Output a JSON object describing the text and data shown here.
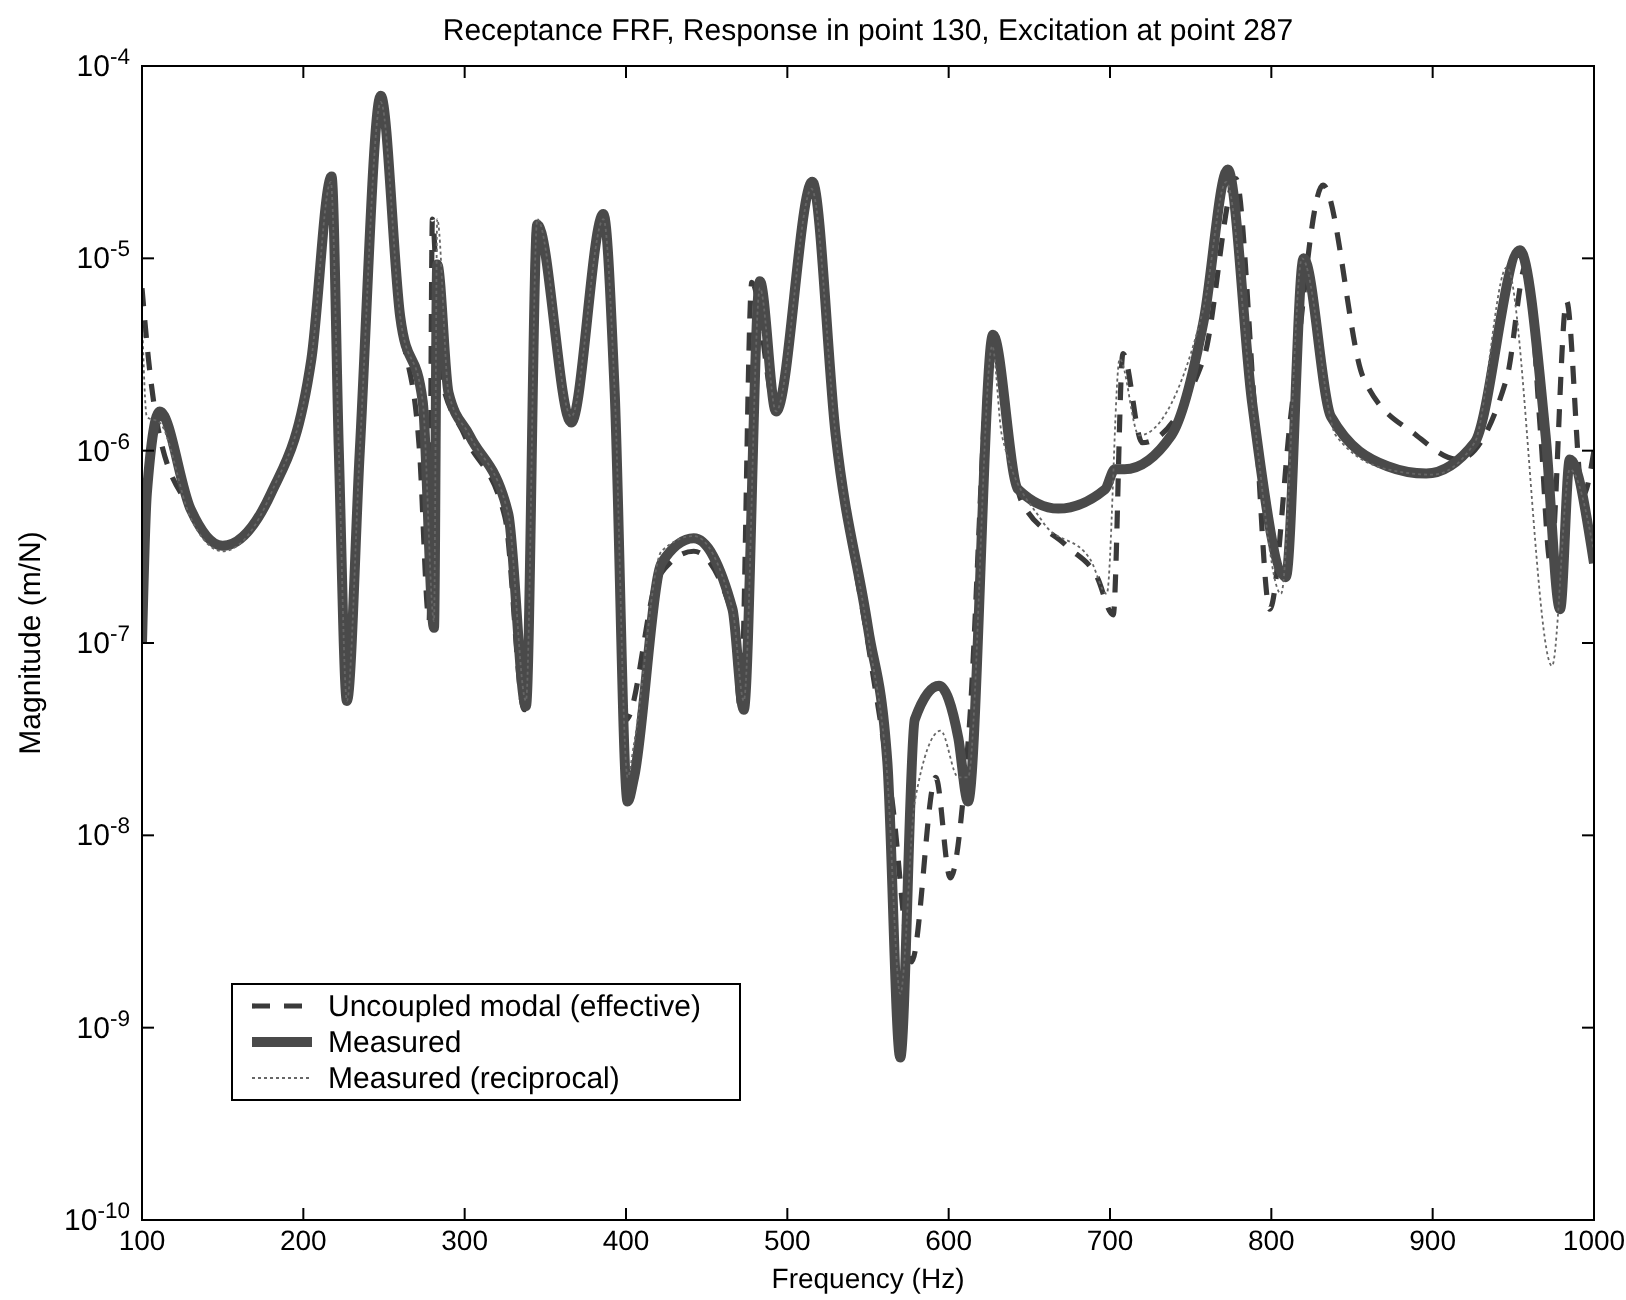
{
  "chart_data": {
    "type": "line",
    "title": "Receptance FRF, Response in point 130, Excitation at point 287",
    "xlabel": "Frequency (Hz)",
    "ylabel": "Magnitude (m/N)",
    "log": "y",
    "grid": false,
    "legend": "bottom left",
    "marker": "none",
    "xlim": [
      100,
      1000
    ],
    "xticks": [
      100,
      200,
      300,
      400,
      500,
      600,
      700,
      800,
      900,
      1000
    ],
    "ylim": [
      1e-10,
      0.0001
    ],
    "yticks": [
      {
        "value": 1e-10,
        "label": "10$^{-10}$"
      },
      {
        "value": 1e-09,
        "label": "10$^{-9}$"
      },
      {
        "value": 1e-08,
        "label": "10$^{-8}$"
      },
      {
        "value": 1e-07,
        "label": "10$^{-7}$"
      },
      {
        "value": 1e-06,
        "label": "10$^{-6}$"
      },
      {
        "value": 1e-05,
        "label": "10$^{-5}$"
      },
      {
        "value": 0.0001,
        "label": "10$^{-4}$"
      }
    ],
    "series": [
      {
        "name": "Uncoupled modal (effective)",
        "color": "#3a3a3a",
        "line_style": "dashed",
        "x": [
          100,
          104,
          110,
          130,
          150,
          180,
          205,
          217,
          222,
          227,
          235,
          248,
          260,
          272,
          278,
          280,
          285,
          300,
          325,
          337,
          344,
          366,
          386,
          392,
          400,
          420,
          442,
          466,
          471,
          478,
          493,
          515,
          530,
          550,
          565,
          577,
          592,
          601,
          612,
          627,
          645,
          673,
          692,
          702,
          708,
          720,
          758,
          778,
          790,
          799,
          812,
          832,
          857,
          890,
          916,
          946,
          958,
          967,
          973,
          983,
          993,
          1000
        ],
        "values": [
          7e-06,
          3e-06,
          1.3e-06,
          5e-07,
          3.2e-07,
          6e-07,
          3e-06,
          2.6e-05,
          1e-06,
          5e-08,
          1e-06,
          7e-05,
          5e-06,
          1e-06,
          1.3e-07,
          1.6e-05,
          2.5e-06,
          1.2e-06,
          4.5e-07,
          4.5e-08,
          1.6e-05,
          1.5e-06,
          1.7e-05,
          2e-06,
          4e-08,
          2.2e-07,
          3e-07,
          1.4e-07,
          4.5e-08,
          7.5e-06,
          1.6e-06,
          2.5e-05,
          1.2e-06,
          1e-07,
          1.5e-08,
          2.2e-09,
          2e-08,
          6e-09,
          3e-08,
          4e-06,
          5.5e-07,
          3.2e-07,
          2.2e-07,
          1.4e-07,
          3.2e-06,
          1.1e-06,
          3e-06,
          2.6e-05,
          1.5e-06,
          1.5e-07,
          1.5e-06,
          2.4e-05,
          2.4e-06,
          1.2e-06,
          9e-07,
          2.4e-06,
          9.3e-06,
          1.2e-06,
          2.6e-07,
          6e-06,
          5.8e-07,
          1e-06
        ]
      },
      {
        "name": "Measured",
        "color": "#4a4a4a",
        "line_style": "solid",
        "x": [
          100,
          103,
          111,
          130,
          150,
          180,
          205,
          217.5,
          222,
          227,
          235,
          248,
          260,
          274,
          281,
          283,
          290,
          303,
          327,
          338,
          345,
          366,
          386,
          393,
          401,
          405,
          422,
          442,
          466,
          473,
          483,
          493,
          515.5,
          530,
          550,
          562,
          570,
          579,
          594,
          606,
          612,
          627.5,
          643,
          668,
          697,
          703,
          709,
          738,
          758,
          773,
          788,
          809,
          820,
          837,
          872,
          896,
          926,
          954,
          970,
          979,
          985,
          1000
        ],
        "values": [
          1e-07,
          6e-07,
          1.6e-06,
          5e-07,
          3.2e-07,
          6e-07,
          3e-06,
          2.66e-05,
          1e-06,
          5e-08,
          1e-06,
          7e-05,
          5e-06,
          1.8e-06,
          1.2e-07,
          9.3e-06,
          2e-06,
          1.2e-06,
          4.7e-07,
          4.7e-08,
          1.5e-05,
          1.4e-06,
          1.7e-05,
          2e-06,
          1.5e-08,
          2e-08,
          2.6e-07,
          3.5e-07,
          1.5e-07,
          4.5e-08,
          7.6e-06,
          1.6e-06,
          2.5e-05,
          1.2e-06,
          1.2e-07,
          2.4e-08,
          7e-10,
          4e-08,
          6e-08,
          3.2e-08,
          1.5e-08,
          4e-06,
          6.3e-07,
          5e-07,
          6.3e-07,
          8e-07,
          8e-07,
          1.2e-06,
          4.7e-06,
          2.9e-05,
          1.8e-06,
          2.2e-07,
          1e-05,
          1.5e-06,
          8.3e-07,
          7.6e-07,
          1.1e-06,
          1.1e-05,
          1.2e-06,
          1.5e-07,
          9e-07,
          2.6e-07
        ]
      },
      {
        "name": "Measured (reciprocal)",
        "color": "#666666",
        "line_style": "dotted",
        "x": [
          100,
          103,
          111,
          130,
          150,
          180,
          205,
          217,
          222,
          227,
          235,
          248,
          260,
          274,
          281,
          283,
          290,
          303,
          327,
          338,
          345,
          366,
          386,
          393,
          401,
          405,
          422,
          442,
          466,
          473,
          483,
          493,
          515,
          530,
          550,
          562,
          570,
          579,
          595,
          606,
          612,
          627,
          633,
          658,
          688,
          698,
          706,
          718,
          758,
          772,
          788,
          806,
          819,
          840,
          872,
          900,
          926,
          946,
          974,
          985,
          1000
        ],
        "values": [
          5e-06,
          1.5e-06,
          1.4e-06,
          4.5e-07,
          3e-07,
          6e-07,
          3e-06,
          2.5e-05,
          1e-06,
          5e-08,
          1e-06,
          6.5e-05,
          5e-06,
          1.8e-06,
          1.3e-07,
          1.6e-05,
          2e-06,
          1.2e-06,
          4.7e-07,
          5e-08,
          1.6e-05,
          1.5e-06,
          1.6e-05,
          2e-06,
          2e-08,
          3e-08,
          3e-07,
          3.6e-07,
          1.5e-07,
          5e-08,
          7e-06,
          1.6e-06,
          2.3e-05,
          1.2e-06,
          1.1e-07,
          2e-08,
          1.5e-09,
          1.5e-08,
          3.5e-08,
          2e-08,
          2e-08,
          3.5e-06,
          1.2e-06,
          4.3e-07,
          2.7e-07,
          1.8e-07,
          3e-06,
          1.2e-06,
          5.5e-06,
          2.5e-05,
          1.8e-06,
          1.8e-07,
          1e-05,
          1.2e-06,
          8e-07,
          7.5e-07,
          1.1e-06,
          9e-06,
          7.6e-08,
          8e-07,
          3e-07
        ]
      }
    ]
  }
}
